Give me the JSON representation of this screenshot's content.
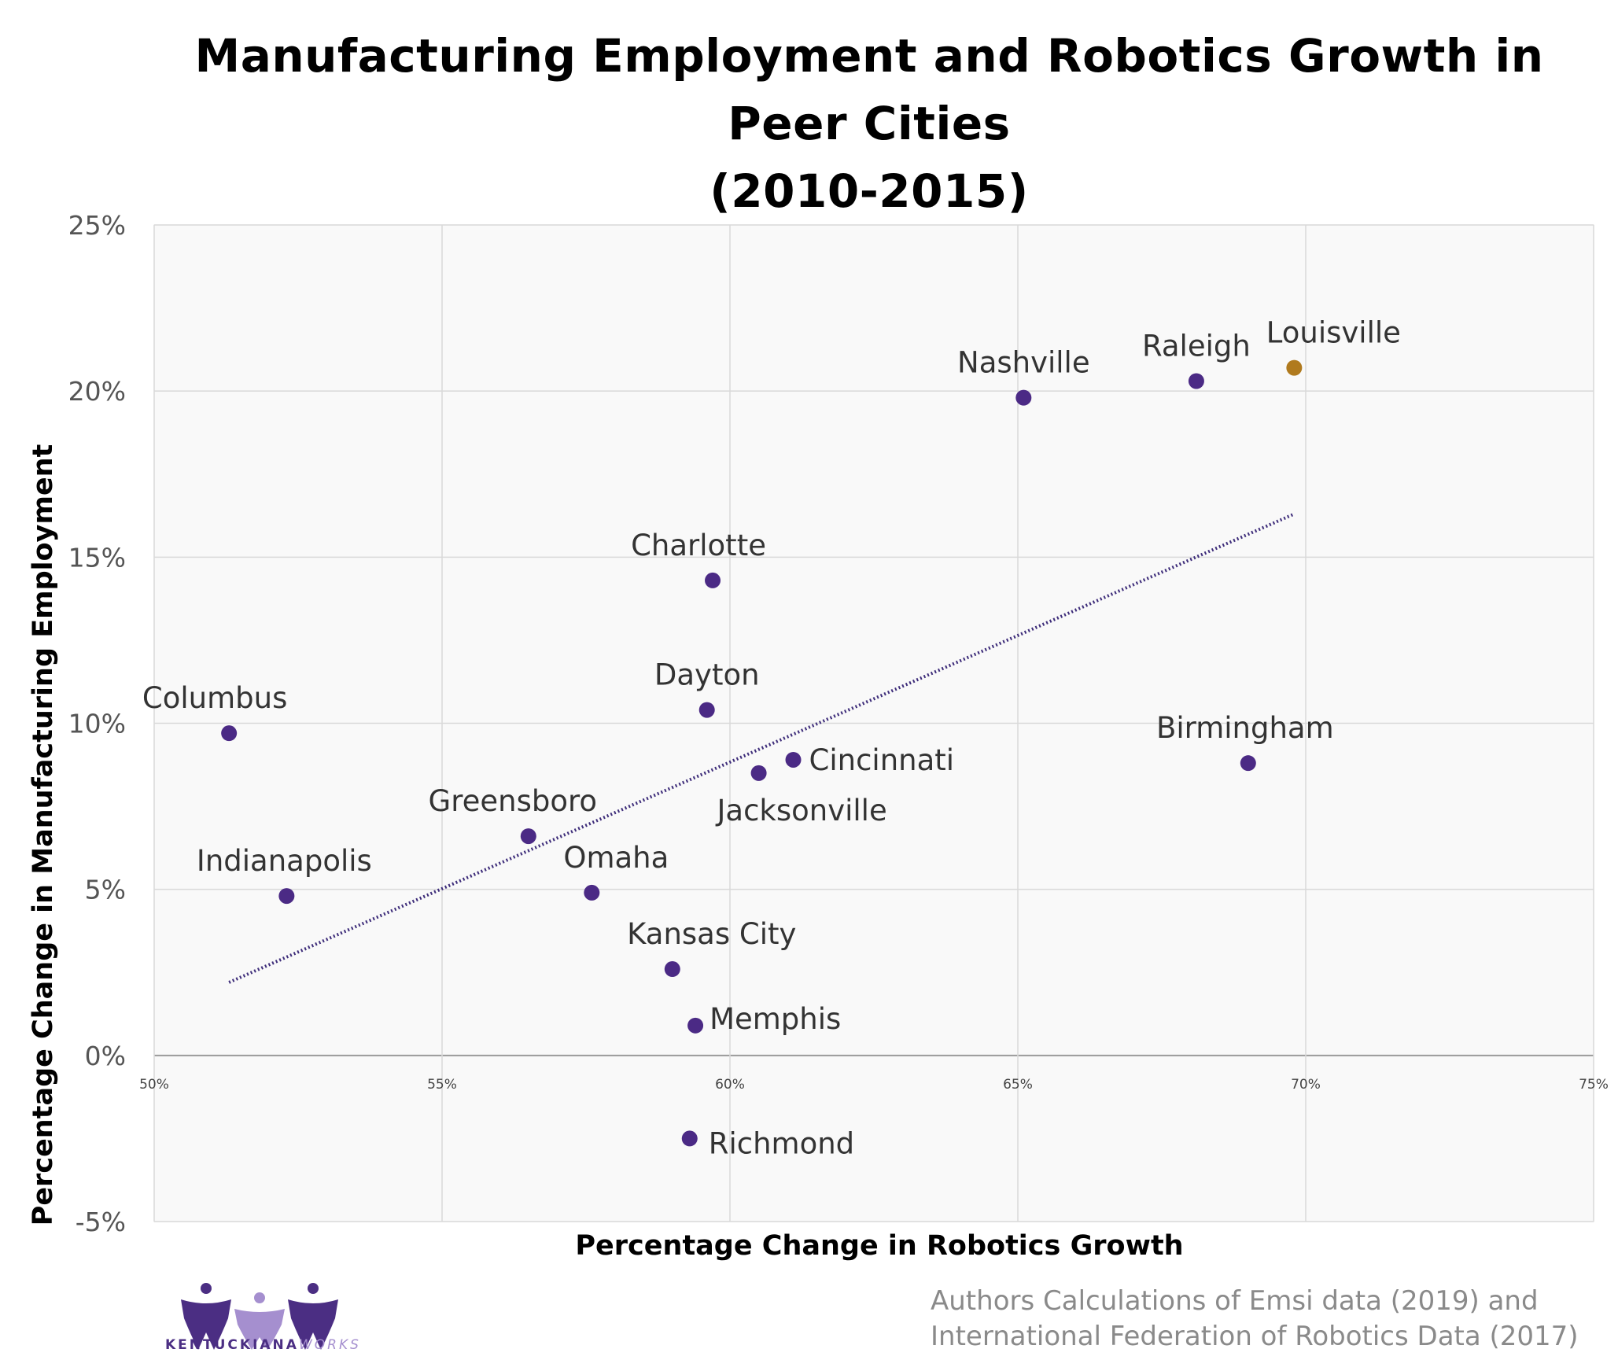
{
  "title_lines": [
    "Manufacturing Employment and Robotics Growth  in",
    "Peer Cities",
    "(2010-2015)"
  ],
  "source_lines": [
    "Authors Calculations of Emsi data (2019) and",
    "International Federation of Robotics Data (2017)"
  ],
  "logo": {
    "name": "KENTUCKIANA",
    "suffix": "WORKS"
  },
  "colors": {
    "point": "#4b2a85",
    "highlight": "#b07a1e",
    "trend": "#3e2d7a",
    "grid": "#d9d9d9",
    "plot_bg": "#f9f9f9"
  },
  "chart_data": {
    "type": "scatter",
    "title": "Manufacturing Employment and Robotics Growth  in Peer Cities (2010-2015)",
    "xlabel": "Percentage Change in Robotics Growth",
    "ylabel": "Percentage Change in Manufacturing Employment",
    "xlim": [
      50,
      75
    ],
    "ylim": [
      -5,
      25
    ],
    "x_ticks": [
      "50%",
      "55%",
      "60%",
      "65%",
      "70%",
      "75%"
    ],
    "y_ticks": [
      "-5%",
      "0%",
      "5%",
      "10%",
      "15%",
      "20%",
      "25%"
    ],
    "grid": true,
    "trendline": {
      "style": "dotted",
      "from": [
        51.3,
        2.2
      ],
      "to": [
        69.8,
        16.3
      ]
    },
    "points": [
      {
        "name": "Louisville",
        "x": 69.8,
        "y": 20.7,
        "highlight": true
      },
      {
        "name": "Raleigh",
        "x": 68.1,
        "y": 20.3
      },
      {
        "name": "Nashville",
        "x": 65.1,
        "y": 19.8
      },
      {
        "name": "Charlotte",
        "x": 59.7,
        "y": 14.3
      },
      {
        "name": "Dayton",
        "x": 59.6,
        "y": 10.4
      },
      {
        "name": "Columbus",
        "x": 51.3,
        "y": 9.7
      },
      {
        "name": "Cincinnati",
        "x": 61.1,
        "y": 8.9
      },
      {
        "name": "Birmingham",
        "x": 69.0,
        "y": 8.8
      },
      {
        "name": "Jacksonville",
        "x": 60.5,
        "y": 8.5
      },
      {
        "name": "Greensboro",
        "x": 56.5,
        "y": 6.6
      },
      {
        "name": "Omaha",
        "x": 57.6,
        "y": 4.9
      },
      {
        "name": "Indianapolis",
        "x": 52.3,
        "y": 4.8
      },
      {
        "name": "Kansas City",
        "x": 59.0,
        "y": 2.6
      },
      {
        "name": "Memphis",
        "x": 59.4,
        "y": 0.9
      },
      {
        "name": "Richmond",
        "x": 59.3,
        "y": -2.5
      }
    ]
  }
}
